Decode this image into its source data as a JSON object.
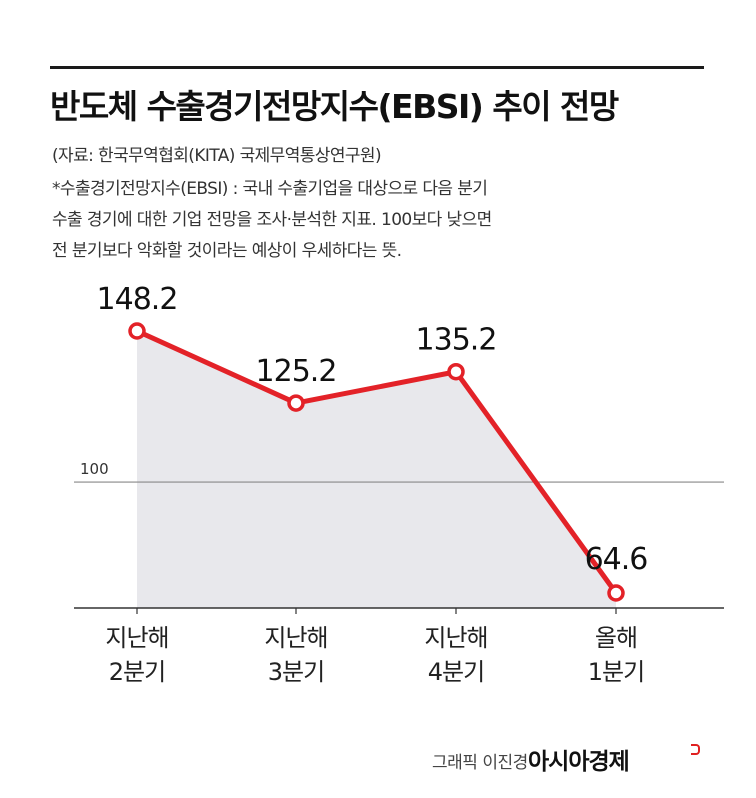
{
  "header": {
    "title": "반도체 수출경기전망지수(EBSI) 추이 전망",
    "source": "(자료: 한국무역협회(KITA) 국제무역통상연구원)",
    "note_lines": [
      "*수출경기전망지수(EBSI) : 국내 수출기업을 대상으로 다음 분기",
      "수출 경기에 대한 기업 전망을 조사·분석한 지표. 100보다 낮으면",
      "전 분기보다 악화할 것이라는 예상이 우세하다는 뜻."
    ]
  },
  "chart_data": {
    "type": "line",
    "title": "반도체 수출경기전망지수(EBSI) 추이 전망",
    "categories": [
      [
        "지난해",
        "2분기"
      ],
      [
        "지난해",
        "3분기"
      ],
      [
        "지난해",
        "4분기"
      ],
      [
        "올해",
        "1분기"
      ]
    ],
    "values": [
      148.2,
      125.2,
      135.2,
      64.6
    ],
    "data_labels": [
      "148.2",
      "125.2",
      "135.2",
      "64.6"
    ],
    "reference_line": {
      "value": 100,
      "label": "100"
    },
    "ylim": [
      60,
      148.2
    ],
    "area_fill": true,
    "colors": {
      "line": "#e32228",
      "area": "#e8e8ec",
      "marker_fill": "#ffffff",
      "reference": "#888888",
      "axis": "#333333"
    }
  },
  "footer": {
    "credit": "그래픽 이진경",
    "brand": "아시아경제"
  }
}
